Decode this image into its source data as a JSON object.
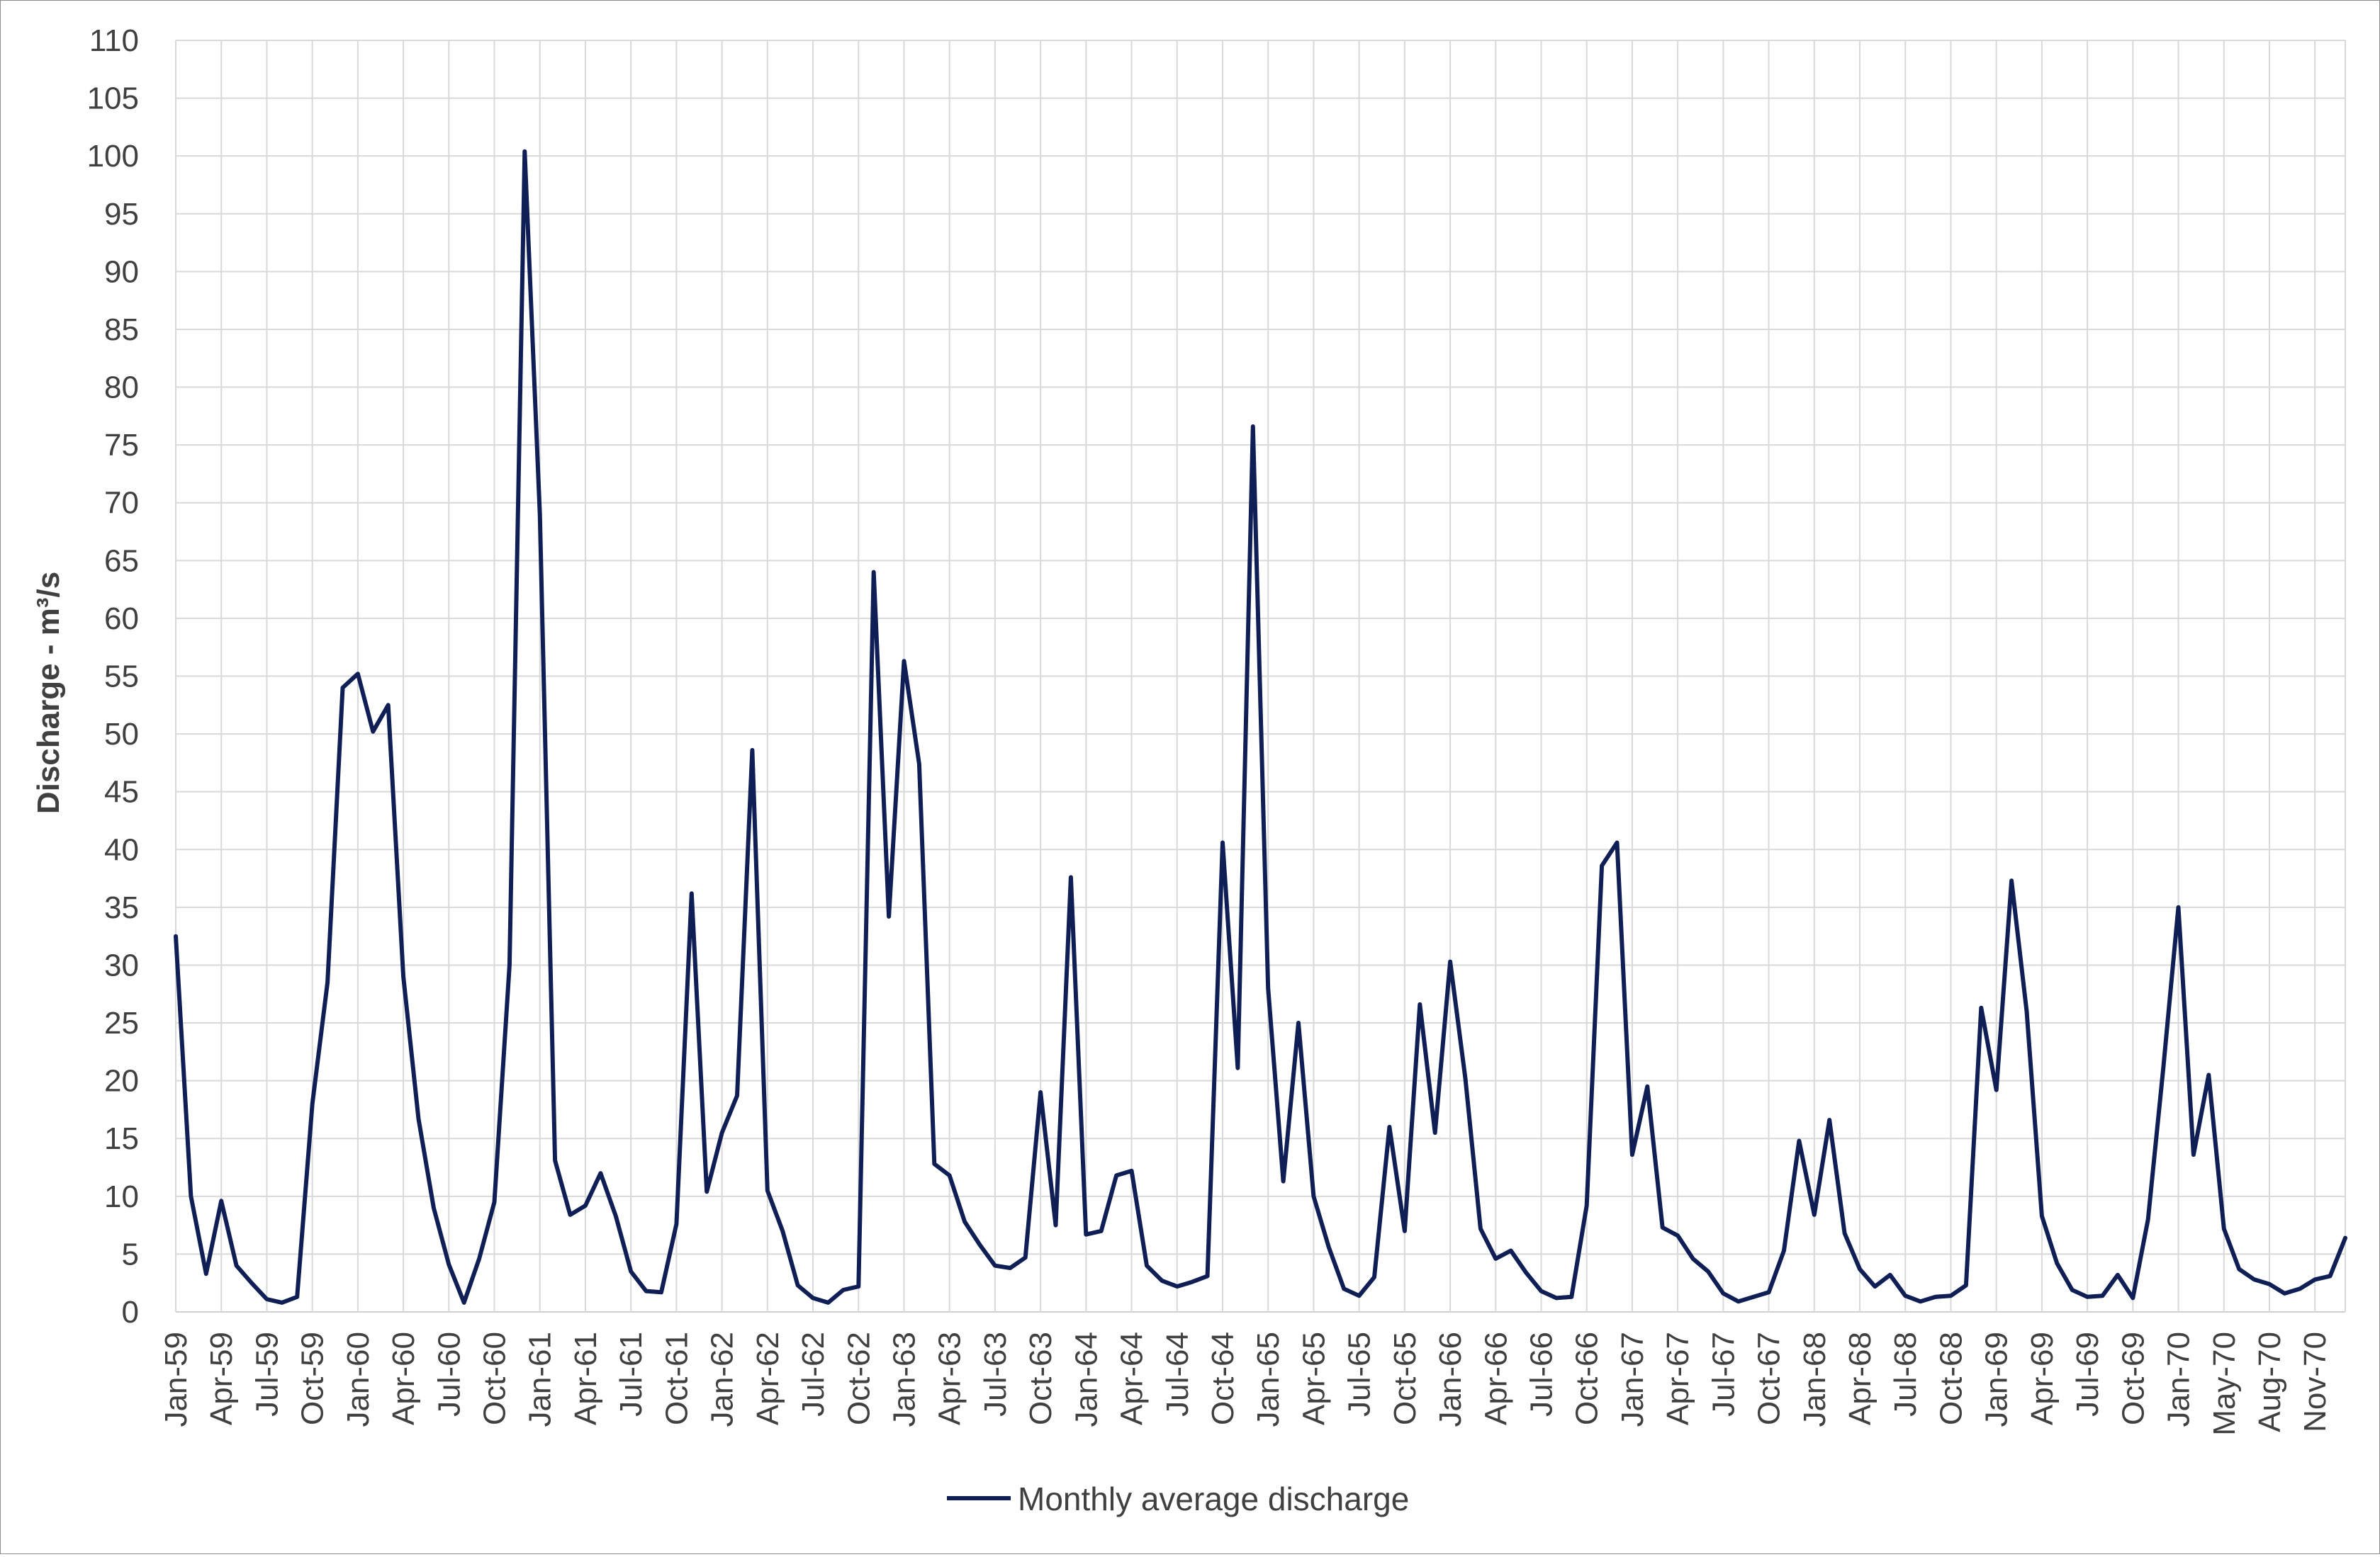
{
  "chart_data": {
    "type": "line",
    "title": "",
    "xlabel": "",
    "ylabel": "Discharge - m³/s",
    "ylim": [
      0,
      110
    ],
    "ytick_step": 5,
    "grid": true,
    "legend_position": "bottom",
    "x_start": "Jan-59",
    "x_labels": [
      "Jan-59",
      "Apr-59",
      "Jul-59",
      "Oct-59",
      "Jan-60",
      "Apr-60",
      "Jul-60",
      "Oct-60",
      "Jan-61",
      "Apr-61",
      "Jul-61",
      "Oct-61",
      "Jan-62",
      "Apr-62",
      "Jul-62",
      "Oct-62",
      "Jan-63",
      "Apr-63",
      "Jul-63",
      "Oct-63",
      "Jan-64",
      "Apr-64",
      "Jul-64",
      "Oct-64",
      "Jan-65",
      "Apr-65",
      "Jul-65",
      "Oct-65",
      "Jan-66",
      "Apr-66",
      "Jul-66",
      "Oct-66",
      "Jan-67",
      "Apr-67",
      "Jul-67",
      "Oct-67",
      "Jan-68",
      "Apr-68",
      "Jul-68",
      "Oct-68",
      "Jan-69",
      "Apr-69",
      "Jul-69",
      "Oct-69",
      "Jan-70",
      "May-70",
      "Aug-70",
      "Nov-70"
    ],
    "series": [
      {
        "name": "Monthly average discharge",
        "color": "#0f1f55",
        "values": [
          32.5,
          10,
          3.3,
          9.6,
          4,
          2.5,
          1.1,
          0.8,
          1.3,
          18,
          28.5,
          54,
          55.2,
          50.2,
          52.5,
          29,
          16.7,
          9,
          4.1,
          0.8,
          4.6,
          9.5,
          30,
          100.4,
          69,
          13.1,
          8.4,
          9.2,
          12,
          8.3,
          3.5,
          1.8,
          1.7,
          7.6,
          36.2,
          10.4,
          15.5,
          18.7,
          48.6,
          10.5,
          7,
          2.3,
          1.2,
          0.8,
          1.9,
          2.2,
          64,
          34.2,
          56.3,
          47.4,
          12.8,
          11.8,
          7.8,
          5.8,
          4,
          3.8,
          4.7,
          19,
          7.5,
          37.6,
          6.7,
          7,
          11.8,
          12.2,
          4,
          2.7,
          2.2,
          2.6,
          3.1,
          40.6,
          21.1,
          76.6,
          28,
          11.3,
          25,
          10,
          5.6,
          2,
          1.4,
          3,
          16,
          7,
          26.6,
          15.5,
          30.3,
          20.2,
          7.2,
          4.6,
          5.3,
          3.4,
          1.8,
          1.2,
          1.3,
          9.2,
          38.6,
          40.6,
          13.6,
          19.5,
          7.3,
          6.6,
          4.6,
          3.5,
          1.6,
          0.9,
          1.3,
          1.7,
          5.3,
          14.8,
          8.4,
          16.6,
          6.8,
          3.7,
          2.2,
          3.2,
          1.4,
          0.9,
          1.3,
          1.4,
          2.3,
          26.3,
          19.2,
          37.3,
          26,
          8.3,
          4.2,
          1.9,
          1.3,
          1.4,
          3.2,
          1.2,
          8,
          21,
          35,
          13.6,
          20.5,
          7.2,
          3.7,
          2.8,
          2.4,
          1.6,
          2,
          2.8,
          3.1,
          6.4
        ]
      }
    ]
  }
}
